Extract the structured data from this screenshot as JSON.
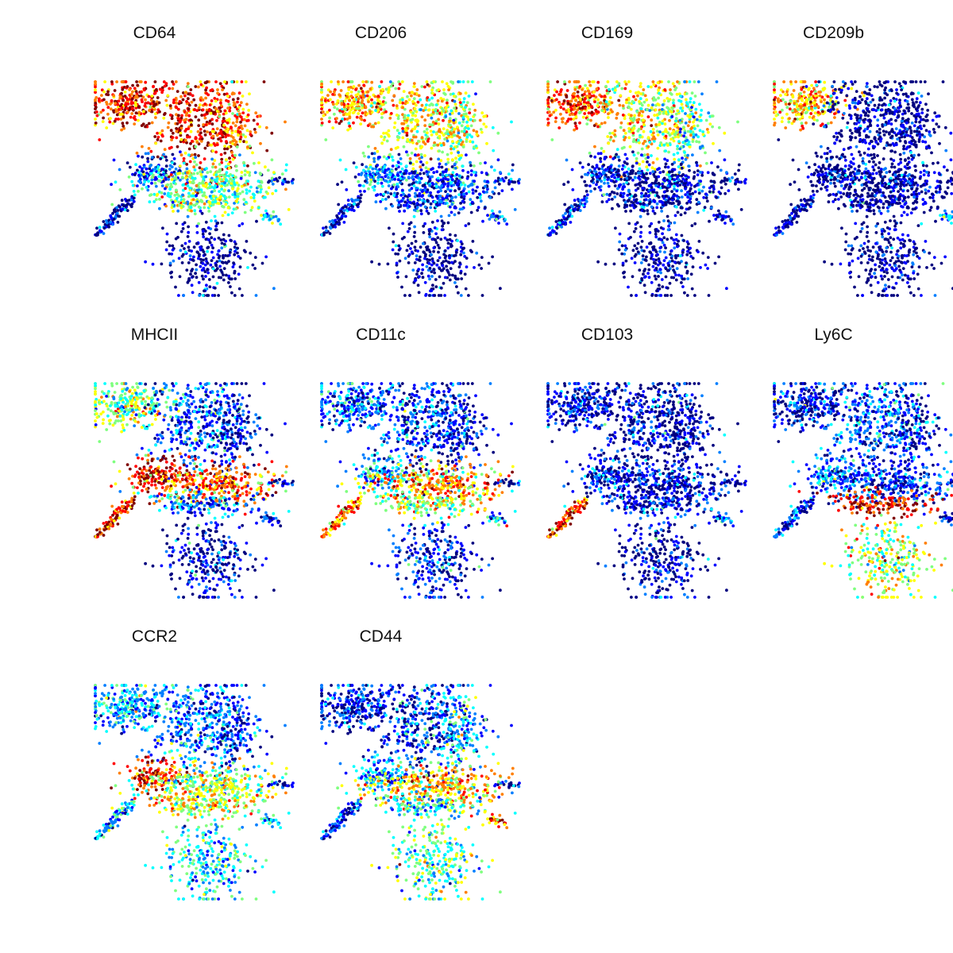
{
  "chart_data": {
    "type": "scatter",
    "description_of_encoding": "",
    "colormap": [
      "#00007f",
      "#0000ff",
      "#007fff",
      "#00ffff",
      "#7fff7f",
      "#ffff00",
      "#ff7f00",
      "#ff0000",
      "#7f0000"
    ],
    "background": "#ffffff",
    "axes_visible": false,
    "grid": false,
    "shared_embedding": true,
    "panels": [
      {
        "marker": "CD64",
        "high_regions": [
          "upper-left cluster",
          "upper-center cluster"
        ],
        "mid_regions": [
          "central band"
        ],
        "low_regions": [
          "lower cluster",
          "left diagonal tail",
          "right outliers"
        ]
      },
      {
        "marker": "CD206",
        "high_regions": [
          "upper-left cluster",
          "upper-center cluster"
        ],
        "mid_regions": [
          "right small cluster"
        ],
        "low_regions": [
          "central band",
          "lower cluster",
          "left diagonal tail"
        ]
      },
      {
        "marker": "CD169",
        "high_regions": [
          "upper-left cluster",
          "upper-center cluster"
        ],
        "mid_regions": [],
        "low_regions": [
          "central band",
          "lower cluster",
          "left diagonal tail"
        ]
      },
      {
        "marker": "CD209b",
        "high_regions": [
          "upper-left cluster"
        ],
        "mid_regions": [
          "right small cluster"
        ],
        "low_regions": [
          "upper-center cluster",
          "central band",
          "lower cluster"
        ]
      },
      {
        "marker": "MHCII",
        "high_regions": [
          "middle-left cluster",
          "left diagonal tail"
        ],
        "mid_regions": [
          "upper-left cluster"
        ],
        "low_regions": [
          "upper-right cluster",
          "lower cluster"
        ]
      },
      {
        "marker": "CD11c",
        "high_regions": [
          "central band",
          "left diagonal tail"
        ],
        "mid_regions": [
          "upper cluster"
        ],
        "low_regions": [
          "lower cluster"
        ]
      },
      {
        "marker": "CD103",
        "high_regions": [
          "left diagonal tail"
        ],
        "mid_regions": [],
        "low_regions": [
          "upper cluster",
          "central band",
          "lower cluster"
        ]
      },
      {
        "marker": "Ly6C",
        "high_regions": [
          "band below center",
          "lower cluster top"
        ],
        "mid_regions": [
          "lower cluster"
        ],
        "low_regions": [
          "upper cluster",
          "central band"
        ]
      },
      {
        "marker": "CCR2",
        "high_regions": [
          "central band left"
        ],
        "mid_regions": [
          "central band",
          "upper cluster"
        ],
        "low_regions": [
          "lower cluster",
          "upper-right"
        ]
      },
      {
        "marker": "CD44",
        "high_regions": [
          "central band right",
          "right small cluster"
        ],
        "mid_regions": [
          "lower cluster top"
        ],
        "low_regions": [
          "upper cluster",
          "left diagonal tail"
        ]
      }
    ]
  }
}
